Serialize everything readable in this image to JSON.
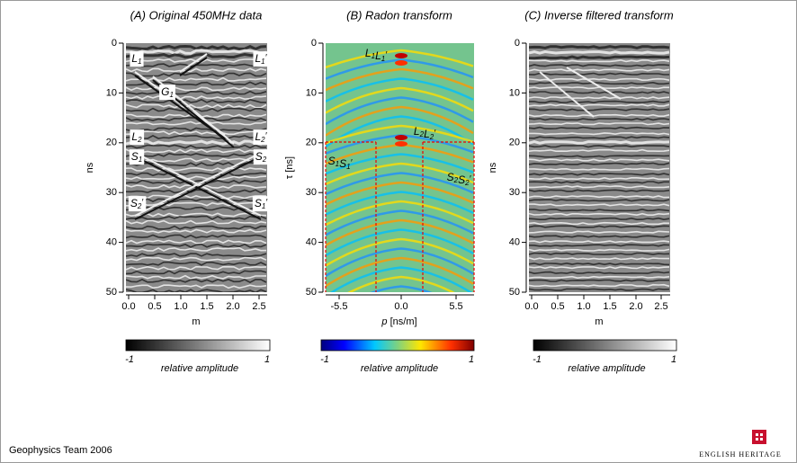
{
  "panels": [
    {
      "title": "(A) Original 450MHz data",
      "y_label": "ns",
      "x_label": "m",
      "y_ticks": [
        "0",
        "10",
        "20",
        "30",
        "40",
        "50"
      ],
      "x_ticks": [
        "0.0",
        "0.5",
        "1.0",
        "1.5",
        "2.0",
        "2.5"
      ],
      "annotations": [
        {
          "tokens": [
            {
              "base": "L",
              "sub": "1"
            }
          ]
        },
        {
          "tokens": [
            {
              "base": "L",
              "sub": "1",
              "prime": "′"
            }
          ]
        },
        {
          "tokens": [
            {
              "base": "G",
              "sub": "1"
            }
          ]
        },
        {
          "tokens": [
            {
              "base": "L",
              "sub": "2"
            }
          ]
        },
        {
          "tokens": [
            {
              "base": "L",
              "sub": "2",
              "prime": "′"
            }
          ]
        },
        {
          "tokens": [
            {
              "base": "S",
              "sub": "1"
            }
          ]
        },
        {
          "tokens": [
            {
              "base": "S",
              "sub": "2"
            }
          ]
        },
        {
          "tokens": [
            {
              "base": "S",
              "sub": "2",
              "prime": "′"
            }
          ]
        },
        {
          "tokens": [
            {
              "base": "S",
              "sub": "1",
              "prime": "′"
            }
          ]
        }
      ],
      "colorbar": {
        "min": "-1",
        "max": "1",
        "label": "relative amplitude"
      }
    },
    {
      "title": "(B) Radon transform",
      "y_label": "τ [ns]",
      "x_label_var": "p",
      "x_label": "[ns/m]",
      "y_ticks": [
        "0",
        "10",
        "20",
        "30",
        "40",
        "50"
      ],
      "x_ticks": [
        "-5.5",
        "0.0",
        "5.5"
      ],
      "annotations": [
        {
          "tokens": [
            {
              "base": "L",
              "sub": "1"
            },
            {
              "base": "L",
              "sub": "1",
              "prime": "′"
            }
          ]
        },
        {
          "tokens": [
            {
              "base": "L",
              "sub": "2"
            },
            {
              "base": "L",
              "sub": "2",
              "prime": "′"
            }
          ]
        },
        {
          "tokens": [
            {
              "base": "S",
              "sub": "1"
            },
            {
              "base": "S",
              "sub": "1",
              "prime": "′"
            }
          ]
        },
        {
          "tokens": [
            {
              "base": "S",
              "sub": "2"
            },
            {
              "base": "S",
              "sub": "2",
              "prime": "′"
            }
          ]
        }
      ],
      "colorbar": {
        "min": "-1",
        "max": "1",
        "label": "relative amplitude"
      }
    },
    {
      "title": "(C) Inverse filtered transform",
      "y_label": "ns",
      "x_label": "m",
      "y_ticks": [
        "0",
        "10",
        "20",
        "30",
        "40",
        "50"
      ],
      "x_ticks": [
        "0.0",
        "0.5",
        "1.0",
        "1.5",
        "2.0",
        "2.5"
      ],
      "annotations": [],
      "colorbar": {
        "min": "-1",
        "max": "1",
        "label": "relative amplitude"
      }
    }
  ],
  "footer": "Geophysics Team 2006",
  "logo": "ENGLISH HERITAGE"
}
